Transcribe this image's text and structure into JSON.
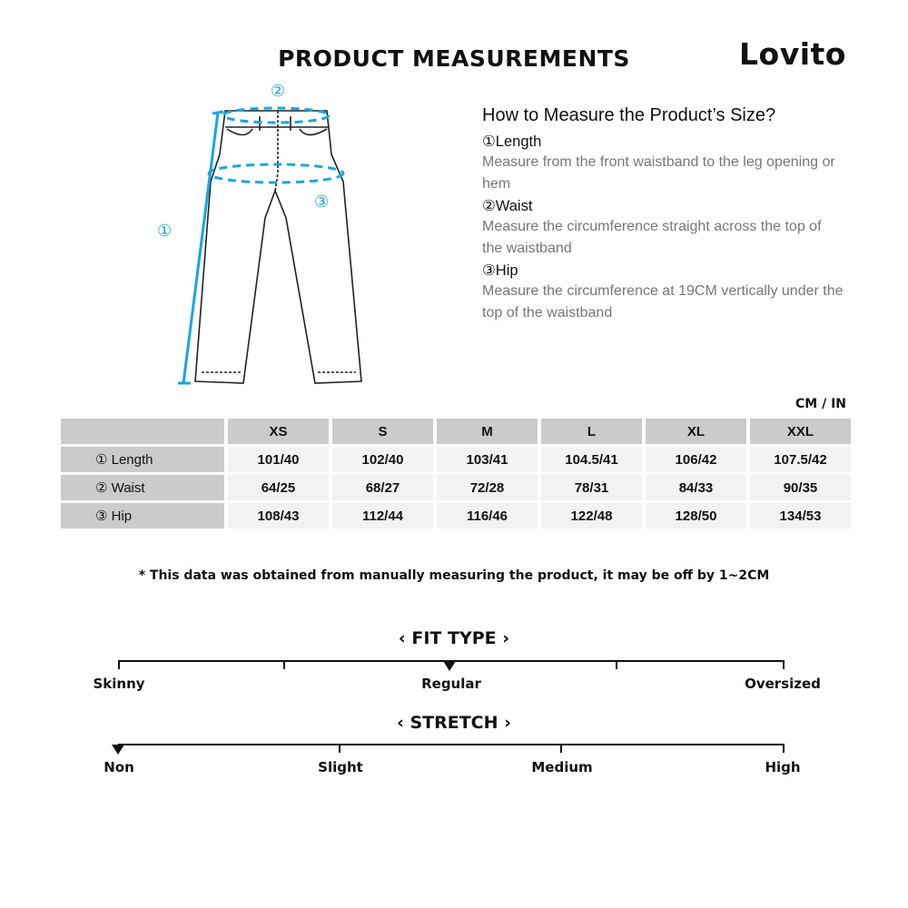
{
  "header": {
    "title": "PRODUCT MEASUREMENTS",
    "logo": "Lovito"
  },
  "diagram": {
    "markers": [
      "①",
      "②",
      "③"
    ],
    "accent_color": "#1aa6e0"
  },
  "howto": {
    "heading": "How to Measure the Product’s Size?",
    "items": [
      {
        "label": "①Length",
        "desc": "Measure from the front waistband to the leg opening or hem"
      },
      {
        "label": "②Waist",
        "desc": "Measure the circumference straight across the top of the waistband"
      },
      {
        "label": "③Hip",
        "desc": "Measure the circumference at 19CM vertically under the top of the waistband"
      }
    ]
  },
  "table": {
    "unit": "CM / IN",
    "sizes": [
      "XS",
      "S",
      "M",
      "L",
      "XL",
      "XXL"
    ],
    "rows": [
      {
        "label": "① Length",
        "values": [
          "101/40",
          "102/40",
          "103/41",
          "104.5/41",
          "106/42",
          "107.5/42"
        ]
      },
      {
        "label": "② Waist",
        "values": [
          "64/25",
          "68/27",
          "72/28",
          "78/31",
          "84/33",
          "90/35"
        ]
      },
      {
        "label": "③ Hip",
        "values": [
          "108/43",
          "112/44",
          "116/46",
          "122/48",
          "128/50",
          "134/53"
        ]
      }
    ]
  },
  "note": "* This data was obtained from manually measuring the product, it may be off by 1~2CM",
  "fit_type": {
    "title": "‹ FIT TYPE ›",
    "labels": [
      "Skinny",
      "Regular",
      "Oversized"
    ],
    "selected": "Regular"
  },
  "stretch": {
    "title": "‹ STRETCH ›",
    "labels": [
      "Non",
      "Slight",
      "Medium",
      "High"
    ],
    "selected": "Non"
  }
}
